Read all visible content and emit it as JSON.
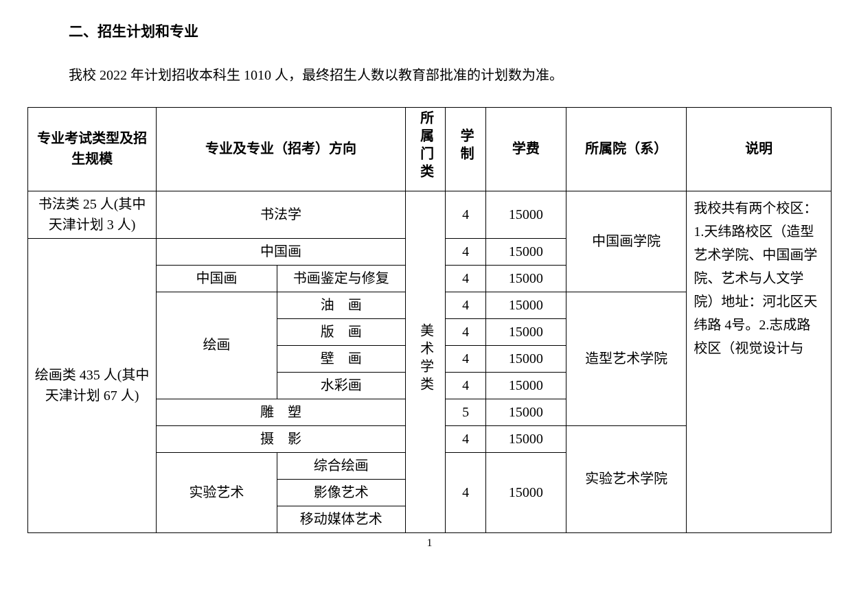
{
  "section_title": "二、招生计划和专业",
  "intro": "我校 2022 年计划招收本科生 1010 人，最终招生人数以教育部批准的计划数为准。",
  "headers": {
    "type": "专业考试类型及招生规模",
    "major": "专业及专业（招考）方向",
    "category": "所属门类",
    "duration": "学制",
    "tuition": "学费",
    "school": "所属院（系）",
    "note": "说明"
  },
  "category_value": "美术学类",
  "note_text": "我校共有两个校区：1.天纬路校区（造型艺术学院、中国画学院、艺术与人文学院）地址：河北区天纬路 4号。2.志成路校区（视觉设计与",
  "rows": {
    "calligraphy_type": "书法类 25 人(其中天津计划 3 人)",
    "calligraphy_major": "书法学",
    "calligraphy_duration": "4",
    "calligraphy_tuition": "15000",
    "painting_type": "绘画类 435 人(其中天津计划 67 人)",
    "chinese_painting": "中国画",
    "chinese_painting_duration": "4",
    "chinese_painting_tuition": "15000",
    "cp_sub_major": "中国画",
    "cp_sub_direction": "书画鉴定与修复",
    "cp_sub_duration": "4",
    "cp_sub_tuition": "15000",
    "school_cn_painting": "中国画学院",
    "painting_major": "绘画",
    "oil": "油　画",
    "oil_d": "4",
    "oil_t": "15000",
    "print": "版　画",
    "print_d": "4",
    "print_t": "15000",
    "mural": "壁　画",
    "mural_d": "4",
    "mural_t": "15000",
    "watercolor": "水彩画",
    "watercolor_d": "4",
    "watercolor_t": "15000",
    "school_plastic": "造型艺术学院",
    "sculpture": "雕　塑",
    "sculpture_d": "5",
    "sculpture_t": "15000",
    "photography": "摄　影",
    "photography_d": "4",
    "photography_t": "15000",
    "exp_major": "实验艺术",
    "exp_comprehensive": "综合绘画",
    "exp_image": "影像艺术",
    "exp_mobile": "移动媒体艺术",
    "exp_d": "4",
    "exp_t": "15000",
    "school_exp": "实验艺术学院"
  },
  "page_number": "1"
}
